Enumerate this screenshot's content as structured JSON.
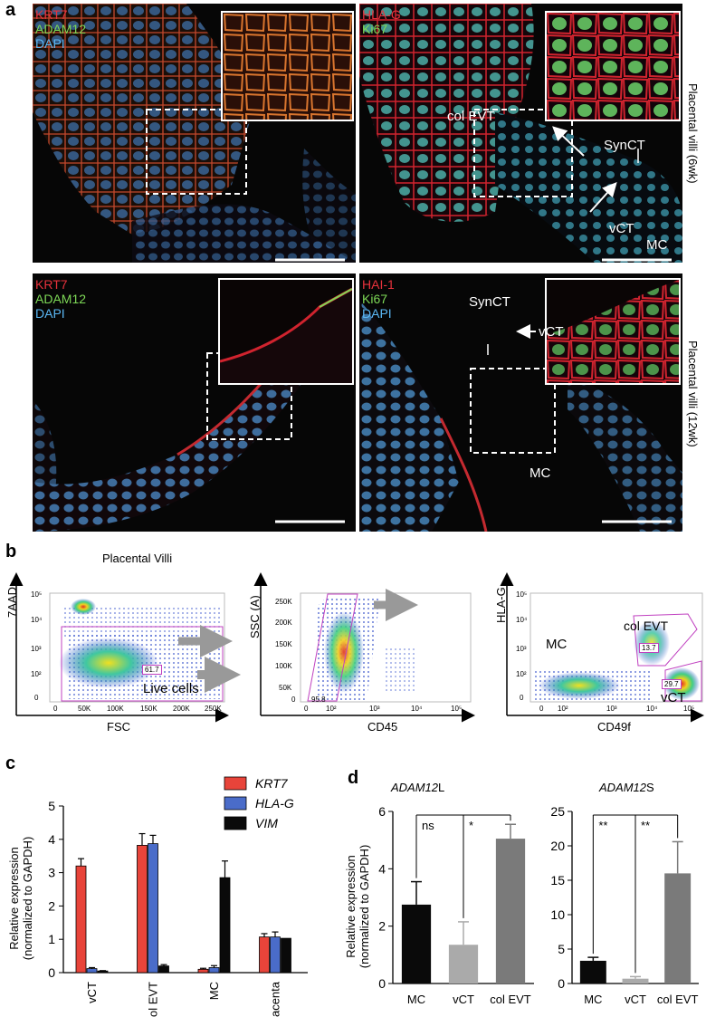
{
  "panel_a": {
    "letter": "a",
    "images": [
      {
        "channels": [
          {
            "text": "KRT7",
            "color": "#e8323c"
          },
          {
            "text": "ADAM12",
            "color": "#7ed957"
          },
          {
            "text": "DAPI",
            "color": "#5bb8f5"
          }
        ],
        "annotations": []
      },
      {
        "channels": [
          {
            "text": "HLA-G",
            "color": "#e8323c"
          },
          {
            "text": "Ki67",
            "color": "#7ed957"
          }
        ],
        "annotations": [
          "col EVT",
          "SynCT",
          "vCT",
          "MC"
        ]
      },
      {
        "channels": [
          {
            "text": "KRT7",
            "color": "#e8323c"
          },
          {
            "text": "ADAM12",
            "color": "#7ed957"
          },
          {
            "text": "DAPI",
            "color": "#5bb8f5"
          }
        ],
        "annotations": []
      },
      {
        "channels": [
          {
            "text": "HAI-1",
            "color": "#e8323c"
          },
          {
            "text": "Ki67",
            "color": "#7ed957"
          },
          {
            "text": "DAPI",
            "color": "#5bb8f5"
          }
        ],
        "annotations": [
          "SynCT",
          "vCT",
          "MC"
        ]
      }
    ],
    "row_labels": [
      "Placental villi (6wk)",
      "Placental villi (12wk)"
    ]
  },
  "panel_b": {
    "letter": "b",
    "plot1": {
      "title": "Placental Villi",
      "ylabel": "7AAD",
      "xlabel": "FSC",
      "gate_label": "Live cells",
      "gate_value": "61.7",
      "yticks": [
        "10⁵",
        "10⁴",
        "10³",
        "10²",
        "0"
      ],
      "xticks": [
        "0",
        "50K",
        "100K",
        "150K",
        "200K",
        "250K"
      ]
    },
    "plot2": {
      "ylabel": "SSC (A)",
      "xlabel": "CD45",
      "gate_value": "95.8",
      "yticks": [
        "250K",
        "200K",
        "150K",
        "100K",
        "50K",
        "0"
      ],
      "xticks": [
        "0",
        "10²",
        "10³",
        "10⁴",
        "10⁵"
      ]
    },
    "plot3": {
      "ylabel": "HLA-G",
      "xlabel": "CD49f",
      "gates": [
        "MC",
        "col EVT",
        "vCT"
      ],
      "gate_values": [
        "13.7",
        "29.7"
      ],
      "yticks": [
        "10⁵",
        "10⁴",
        "10³",
        "10²",
        "0"
      ],
      "xticks": [
        "0",
        "10²",
        "10³",
        "10⁴",
        "10⁵"
      ]
    }
  },
  "chart_data": [
    {
      "type": "bar",
      "panel": "c",
      "categories": [
        "vCT",
        "col EVT",
        "MC",
        "Placenta"
      ],
      "series": [
        {
          "name": "KRT7",
          "color": "#e8443a",
          "values": [
            3.2,
            3.82,
            0.1,
            1.07
          ],
          "errors": [
            0.22,
            0.35,
            0.03,
            0.1
          ]
        },
        {
          "name": "HLA-G",
          "color": "#4a6cc9",
          "values": [
            0.12,
            3.87,
            0.15,
            1.07
          ],
          "errors": [
            0.03,
            0.25,
            0.06,
            0.15
          ]
        },
        {
          "name": "VIM",
          "color": "#0a0a0a",
          "values": [
            0.05,
            0.2,
            2.85,
            1.03
          ],
          "errors": [
            0.01,
            0.04,
            0.5,
            0.0
          ]
        }
      ],
      "ylabel": "Relative expression (normalized to GAPDH)",
      "ylim": [
        0,
        5
      ],
      "yticks": [
        "0",
        "1",
        "2",
        "3",
        "4",
        "5"
      ]
    },
    {
      "type": "bar",
      "panel": "d",
      "title": "ADAM12L",
      "categories": [
        "MC",
        "vCT",
        "col EVT"
      ],
      "values": [
        2.75,
        1.35,
        5.05
      ],
      "errors": [
        0.8,
        0.8,
        0.5
      ],
      "colors": [
        "#0a0a0a",
        "#aaaaaa",
        "#7a7a7a"
      ],
      "ylabel": "Relative expression (normalized to GAPDH)",
      "ylim": [
        0,
        6
      ],
      "yticks": [
        "0",
        "2",
        "4",
        "6"
      ],
      "significance": [
        {
          "label": "ns",
          "pair": [
            "MC",
            "col EVT"
          ]
        },
        {
          "label": "*",
          "pair": [
            "vCT",
            "col EVT"
          ]
        }
      ]
    },
    {
      "type": "bar",
      "panel": "d",
      "title": "ADAM12S",
      "categories": [
        "MC",
        "vCT",
        "col EVT"
      ],
      "values": [
        3.3,
        0.7,
        16.0
      ],
      "errors": [
        0.5,
        0.3,
        4.6
      ],
      "colors": [
        "#0a0a0a",
        "#aaaaaa",
        "#7a7a7a"
      ],
      "ylim": [
        0,
        25
      ],
      "yticks": [
        "0",
        "5",
        "10",
        "15",
        "20",
        "25"
      ],
      "significance": [
        {
          "label": "**",
          "pair": [
            "MC",
            "col EVT"
          ]
        },
        {
          "label": "**",
          "pair": [
            "vCT",
            "col EVT"
          ]
        }
      ]
    }
  ],
  "panel_c": {
    "letter": "c",
    "legend_title_italic": true
  },
  "panel_d": {
    "letter": "d",
    "title_left_prefix": "ADAM12",
    "title_left_suffix": "L",
    "title_right_prefix": "ADAM12",
    "title_right_suffix": "S"
  }
}
